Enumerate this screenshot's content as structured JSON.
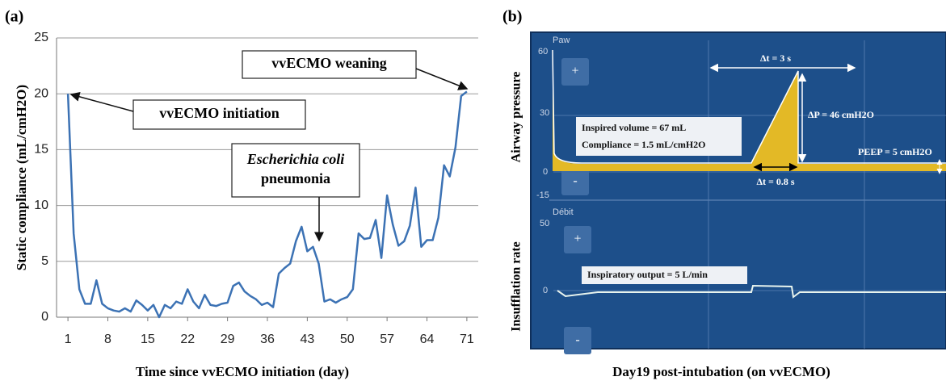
{
  "chart_data": {
    "type": "line",
    "panel_label": "(a)",
    "x_label": "Time since vvECMO initiation (day)",
    "y_label": "Static compliance (mL/cmH2O)",
    "x": [
      1,
      2,
      3,
      4,
      5,
      6,
      7,
      8,
      9,
      10,
      11,
      12,
      13,
      14,
      15,
      16,
      17,
      18,
      19,
      20,
      21,
      22,
      23,
      24,
      25,
      26,
      27,
      28,
      29,
      30,
      31,
      32,
      33,
      34,
      35,
      36,
      37,
      38,
      39,
      40,
      41,
      42,
      43,
      44,
      45,
      46,
      47,
      48,
      49,
      50,
      51,
      52,
      53,
      54,
      55,
      56,
      57,
      58,
      59,
      60,
      61,
      62,
      63,
      64,
      65,
      66,
      67,
      68,
      69,
      70,
      71
    ],
    "series": [
      {
        "color": "#3c72b4",
        "values": [
          20,
          7.5,
          2.5,
          1.2,
          1.2,
          3.3,
          1.2,
          0.8,
          0.6,
          0.5,
          0.8,
          0.5,
          1.5,
          1.1,
          0.6,
          1.1,
          0,
          1.1,
          0.8,
          1.4,
          1.2,
          2.5,
          1.4,
          0.8,
          2.0,
          1.1,
          1.0,
          1.2,
          1.3,
          2.8,
          3.1,
          2.3,
          1.9,
          1.6,
          1.1,
          1.3,
          0.9,
          3.9,
          4.4,
          4.8,
          6.8,
          8.1,
          5.9,
          6.3,
          4.8,
          1.4,
          1.6,
          1.3,
          1.6,
          1.8,
          2.5,
          7.5,
          7.0,
          7.1,
          8.7,
          5.3,
          10.9,
          8.3,
          6.4,
          6.8,
          8.2,
          11.6,
          6.3,
          6.9,
          6.9,
          8.9,
          13.6,
          12.6,
          15.2,
          19.8,
          20.2
        ]
      }
    ],
    "xlim": [
      -1,
      73
    ],
    "xticks": [
      1,
      8,
      15,
      22,
      29,
      36,
      43,
      50,
      57,
      64,
      71
    ],
    "ylim": [
      0,
      25
    ],
    "yticks": [
      0,
      5,
      10,
      15,
      20,
      25
    ],
    "grid": true,
    "annotations": [
      {
        "lines": [
          "vvECMO weaning"
        ]
      },
      {
        "lines": [
          "vvECMO initiation"
        ]
      },
      {
        "lines": [
          "Escherichia coli",
          "pneumonia"
        ]
      }
    ]
  },
  "panel_b": {
    "panel_label": "(b)",
    "caption": "Day19 post-intubation (on vvECMO)",
    "left_labels": [
      "Airway pressure",
      "Insufflation rate"
    ],
    "paw": {
      "title": "Paw",
      "scale": [
        "60",
        "30",
        "0",
        "-15"
      ],
      "buttons": [
        "+",
        "-"
      ]
    },
    "flow": {
      "title": "Débit",
      "scale": [
        "50",
        "0"
      ],
      "buttons": [
        "+",
        "-"
      ]
    },
    "notes": {
      "inspired_volume": "Inspired volume = 67 mL",
      "compliance": "Compliance = 1.5 mL/cmH2O",
      "dt_long": "Δt = 3 s",
      "dp": "ΔP = 46 cmH2O",
      "peep": "PEEP = 5 cmH2O",
      "dt_short": "Δt = 0.8 s",
      "output": "Inspiratory output = 5 L/min"
    }
  }
}
